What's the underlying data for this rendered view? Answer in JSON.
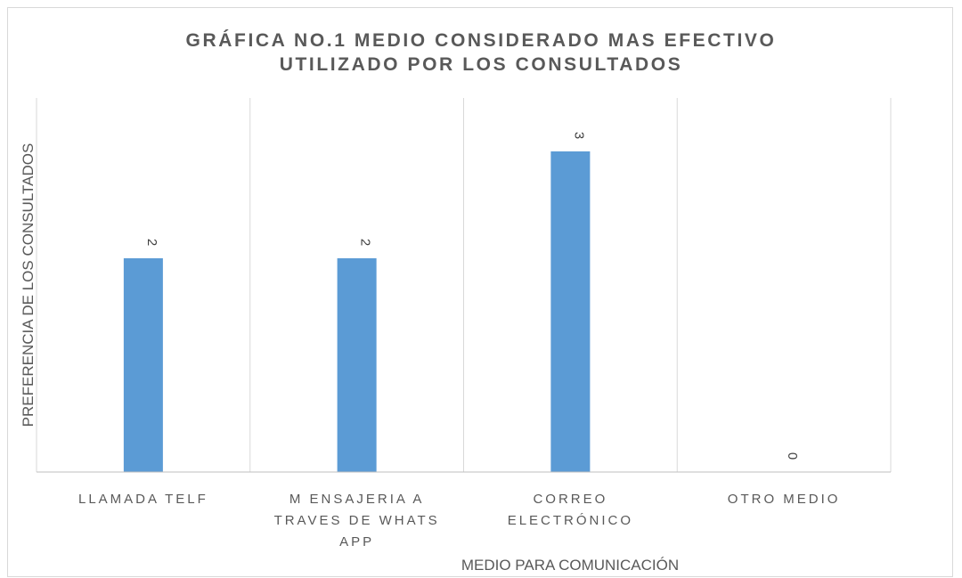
{
  "chart_data": {
    "type": "bar",
    "title": [
      "GRÁFICA NO.1 MEDIO CONSIDERADO MAS EFECTIVO",
      "UTILIZADO POR LOS CONSULTADOS"
    ],
    "xlabel": "MEDIO PARA COMUNICACIÓN",
    "ylabel": "PREFERENCIA DE LOS CONSULTADOS",
    "categories": [
      [
        "LLAMADA TELF"
      ],
      [
        "M ENSAJERIA A",
        "TRAVES DE WHATS",
        "APP"
      ],
      [
        "CORREO",
        "ELECTRÓNICO"
      ],
      [
        "OTRO MEDIO"
      ]
    ],
    "values": [
      2,
      2,
      3,
      0
    ],
    "data_labels": [
      "2",
      "2",
      "3",
      "0"
    ],
    "ylim": [
      0,
      3
    ],
    "grid": "vertical category separators",
    "bar_color": "#5b9bd5"
  }
}
